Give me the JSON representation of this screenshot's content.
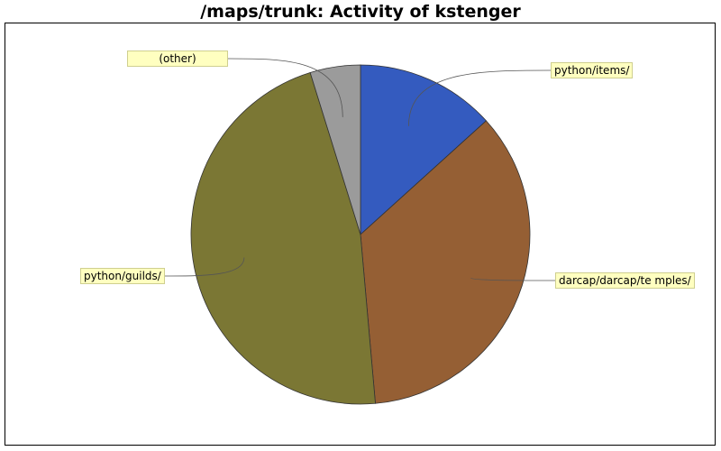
{
  "chart_data": {
    "type": "pie",
    "title": "/maps/trunk: Activity of kstenger",
    "slices": [
      {
        "label": "python/items/",
        "value": 13.3,
        "color": "#345bbf"
      },
      {
        "label": "darcap/darcap/temples/",
        "label_display": "darcap/darcap/te mples/",
        "value": 35.3,
        "color": "#955f34"
      },
      {
        "label": "python/guilds/",
        "value": 46.6,
        "color": "#7b7734"
      },
      {
        "label": "(other)",
        "value": 4.8,
        "color": "#9b9b9b"
      }
    ],
    "start_angle_deg": 0,
    "direction": "clockwise",
    "legend": "callout-labels"
  }
}
